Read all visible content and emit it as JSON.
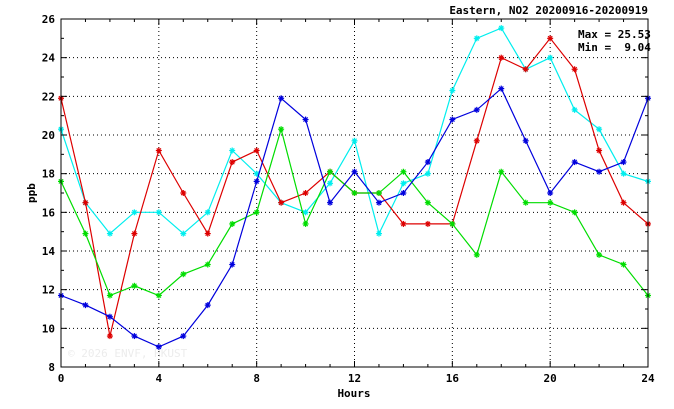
{
  "chart_data": {
    "type": "line",
    "title": "Eastern, NO2 20200916-20200919",
    "xlabel": "Hours",
    "ylabel": "ppb",
    "xlim": [
      0,
      24
    ],
    "ylim": [
      8,
      26
    ],
    "xticks": [
      0,
      4,
      8,
      12,
      16,
      20,
      24
    ],
    "yticks": [
      8,
      10,
      12,
      14,
      16,
      18,
      20,
      22,
      24,
      26
    ],
    "grid": true,
    "max_label": "Max = 25.53",
    "min_label": "Min =  9.04",
    "watermark": "© 2026  ENVF, HKUST",
    "x": [
      0,
      1,
      2,
      3,
      4,
      5,
      6,
      7,
      8,
      9,
      10,
      11,
      12,
      13,
      14,
      15,
      16,
      17,
      18,
      19,
      20,
      21,
      22,
      23,
      24
    ],
    "series": [
      {
        "color": "#00eeee",
        "values": [
          20.3,
          16.5,
          14.9,
          16.0,
          16.0,
          14.9,
          16.0,
          19.2,
          18.0,
          16.5,
          16.0,
          17.5,
          19.7,
          14.9,
          17.5,
          18.0,
          22.3,
          25.0,
          25.53,
          23.4,
          24.0,
          21.3,
          20.3,
          18.0,
          17.6
        ]
      },
      {
        "color": "#dd0000",
        "values": [
          21.9,
          16.5,
          9.6,
          14.9,
          19.2,
          17.0,
          14.9,
          18.6,
          19.2,
          16.5,
          17.0,
          18.1,
          17.0,
          17.0,
          15.4,
          15.4,
          15.4,
          19.7,
          24.0,
          23.4,
          25.0,
          23.4,
          19.2,
          16.5,
          15.4
        ]
      },
      {
        "color": "#00dd00",
        "values": [
          17.6,
          14.9,
          11.7,
          12.2,
          11.7,
          12.8,
          13.3,
          15.4,
          16.0,
          20.3,
          15.4,
          18.1,
          17.0,
          17.0,
          18.1,
          16.5,
          15.4,
          13.8,
          18.1,
          16.5,
          16.5,
          16.0,
          13.8,
          13.3,
          11.7
        ]
      },
      {
        "color": "#0000dd",
        "values": [
          11.7,
          11.2,
          10.6,
          9.6,
          9.04,
          9.6,
          11.2,
          13.3,
          17.6,
          21.9,
          20.8,
          16.5,
          18.1,
          16.5,
          17.0,
          18.6,
          20.8,
          21.3,
          22.4,
          19.7,
          17.0,
          18.6,
          18.1,
          18.6,
          21.9
        ]
      }
    ]
  }
}
